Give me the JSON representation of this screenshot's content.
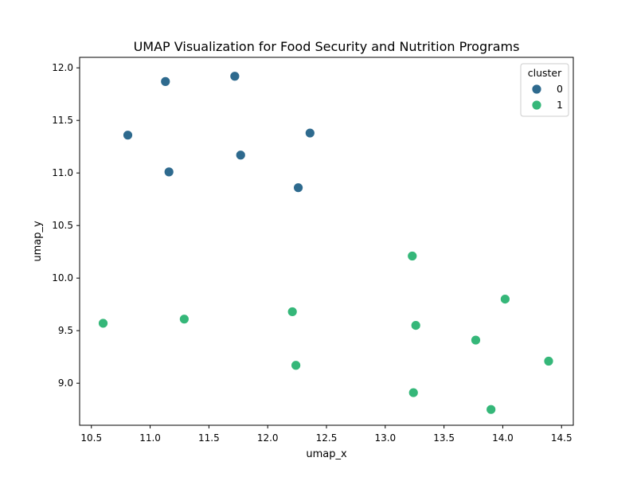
{
  "chart_data": {
    "type": "scatter",
    "title": "UMAP Visualization for Food Security and Nutrition Programs",
    "xlabel": "umap_x",
    "ylabel": "umap_y",
    "xlim": [
      10.4,
      14.6
    ],
    "ylim": [
      8.6,
      12.1
    ],
    "xticks": [
      "10.5",
      "11.0",
      "11.5",
      "12.0",
      "12.5",
      "13.0",
      "13.5",
      "14.0",
      "14.5"
    ],
    "yticks": [
      "9.0",
      "9.5",
      "10.0",
      "10.5",
      "11.0",
      "11.5",
      "12.0"
    ],
    "grid": false,
    "legend": {
      "title": "cluster",
      "placement": "top-right"
    },
    "series": [
      {
        "name": "0",
        "color": "#2e6a8e",
        "points": [
          {
            "x": 11.13,
            "y": 11.87
          },
          {
            "x": 11.72,
            "y": 11.92
          },
          {
            "x": 10.81,
            "y": 11.36
          },
          {
            "x": 12.36,
            "y": 11.38
          },
          {
            "x": 11.77,
            "y": 11.17
          },
          {
            "x": 11.16,
            "y": 11.01
          },
          {
            "x": 12.26,
            "y": 10.86
          }
        ]
      },
      {
        "name": "1",
        "color": "#35b779",
        "points": [
          {
            "x": 13.23,
            "y": 10.21
          },
          {
            "x": 14.02,
            "y": 9.8
          },
          {
            "x": 12.21,
            "y": 9.68
          },
          {
            "x": 11.29,
            "y": 9.61
          },
          {
            "x": 10.6,
            "y": 9.57
          },
          {
            "x": 13.26,
            "y": 9.55
          },
          {
            "x": 13.77,
            "y": 9.41
          },
          {
            "x": 14.39,
            "y": 9.21
          },
          {
            "x": 12.24,
            "y": 9.17
          },
          {
            "x": 13.24,
            "y": 8.91
          },
          {
            "x": 13.9,
            "y": 8.75
          }
        ]
      }
    ]
  }
}
